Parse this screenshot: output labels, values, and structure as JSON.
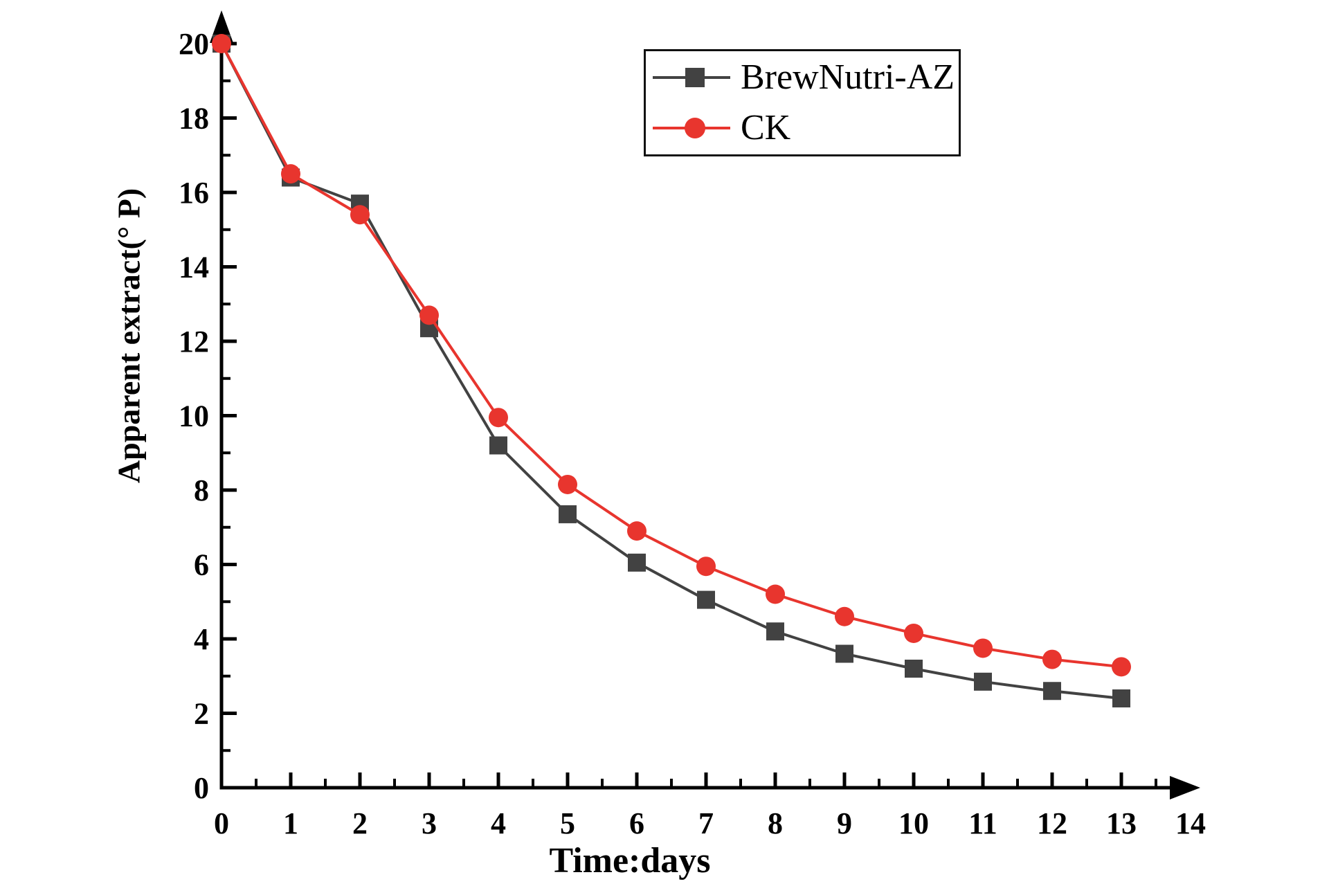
{
  "chart_data": {
    "type": "line",
    "title": "",
    "xlabel": "Time:days",
    "ylabel": "Apparent extract(° P)",
    "x": [
      0,
      1,
      2,
      3,
      4,
      5,
      6,
      7,
      8,
      9,
      10,
      11,
      12,
      13
    ],
    "series": [
      {
        "name": "BrewNutri-AZ",
        "marker": "square",
        "color": "#424242",
        "values": [
          20.0,
          16.4,
          15.7,
          12.35,
          9.2,
          7.35,
          6.05,
          5.05,
          4.2,
          3.6,
          3.2,
          2.85,
          2.6,
          2.4
        ]
      },
      {
        "name": "CK",
        "marker": "circle",
        "color": "#e8352e",
        "values": [
          20.0,
          16.5,
          15.4,
          12.7,
          9.95,
          8.15,
          6.9,
          5.95,
          5.2,
          4.6,
          4.15,
          3.75,
          3.45,
          3.25
        ]
      }
    ],
    "xlim": [
      0,
      14
    ],
    "ylim": [
      0,
      20
    ],
    "x_major_step": 1,
    "x_minor_step": 0.5,
    "y_major_step": 2,
    "y_minor_step": 1,
    "x_tick_labels": [
      "0",
      "1",
      "2",
      "3",
      "4",
      "5",
      "6",
      "7",
      "8",
      "9",
      "10",
      "11",
      "12",
      "13",
      "14"
    ],
    "y_tick_labels": [
      "0",
      "2",
      "4",
      "6",
      "8",
      "10",
      "12",
      "14",
      "16",
      "18",
      "20"
    ],
    "grid": false,
    "legend_position": "top-right",
    "axis_color": "#000000",
    "axis_arrows": true
  }
}
